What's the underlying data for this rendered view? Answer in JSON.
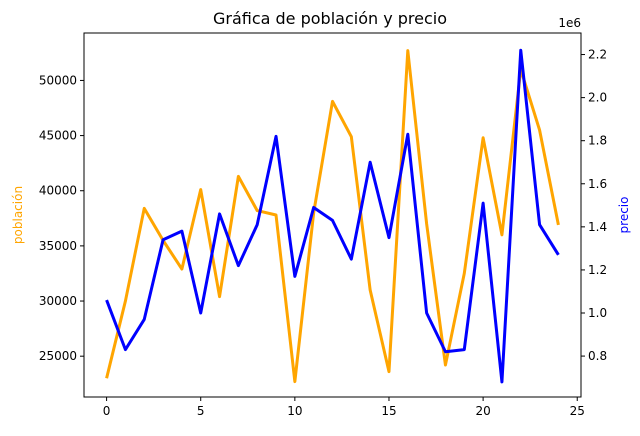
{
  "chart_data": {
    "type": "line",
    "title": "Gráfica de población y precio",
    "x": [
      0,
      1,
      2,
      3,
      4,
      5,
      6,
      7,
      8,
      9,
      10,
      11,
      12,
      13,
      14,
      15,
      16,
      17,
      18,
      19,
      20,
      21,
      22,
      23,
      24
    ],
    "xlim": [
      -1.2,
      25.2
    ],
    "x_ticks": [
      0,
      5,
      10,
      15,
      20,
      25
    ],
    "grid": false,
    "y_left": {
      "label": "población",
      "color": "#ffa500",
      "lim": [
        21300,
        54300
      ],
      "ticks": [
        25000,
        30000,
        35000,
        40000,
        45000,
        50000
      ]
    },
    "y_right": {
      "label": "precio",
      "color": "#0000ff",
      "offset_text": "1e6",
      "lim": [
        0.61,
        2.3
      ],
      "ticks": [
        0.8,
        1.0,
        1.2,
        1.4,
        1.6,
        1.8,
        2.0,
        2.2
      ]
    },
    "series": [
      {
        "axis": "left",
        "color": "#ffa500",
        "values": [
          23000,
          30000,
          38400,
          35500,
          32900,
          40100,
          30400,
          41300,
          38200,
          37800,
          22700,
          38000,
          48100,
          44900,
          31000,
          23600,
          52700,
          37000,
          24200,
          32500,
          44800,
          36000,
          51000,
          45500,
          36900
        ]
      },
      {
        "axis": "right",
        "color": "#0000ff",
        "values": [
          1.06,
          0.83,
          0.97,
          1.34,
          1.38,
          1.0,
          1.46,
          1.22,
          1.41,
          1.82,
          1.17,
          1.49,
          1.43,
          1.25,
          1.7,
          1.35,
          1.83,
          1.0,
          0.82,
          0.83,
          1.51,
          0.68,
          2.22,
          1.41,
          1.27
        ]
      }
    ]
  }
}
